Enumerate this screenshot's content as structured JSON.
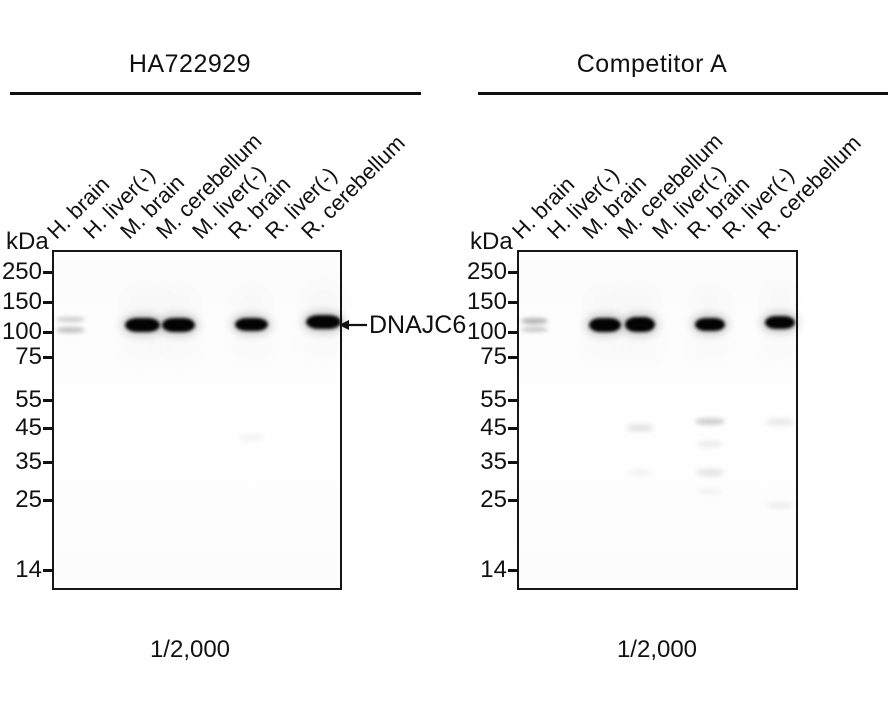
{
  "annotation": {
    "label": "DNAJC6",
    "points_to_kda": 110
  },
  "panels": [
    {
      "title": "HA722929",
      "dilution": "1/2,000",
      "kda_unit": "kDa",
      "lanes": [
        "H. brain",
        "H. liver(-)",
        "M. brain",
        "M. cerebellum",
        "M. liver(-)",
        "R. brain",
        "R. liver(-)",
        "R. cerebellum"
      ],
      "markers": [
        "250",
        "150",
        "100",
        "75",
        "55",
        "45",
        "35",
        "25",
        "14"
      ],
      "bands": [
        {
          "lane": 0,
          "kda": 118,
          "w": 29,
          "h": 5,
          "opacity": 0.2
        },
        {
          "lane": 0,
          "kda": 103,
          "w": 29,
          "h": 6,
          "opacity": 0.24
        },
        {
          "lane": 2,
          "kda": 110,
          "w": 35,
          "h": 14,
          "opacity": 1
        },
        {
          "lane": 3,
          "kda": 110,
          "w": 33,
          "h": 14,
          "opacity": 1
        },
        {
          "lane": 5,
          "kda": 110,
          "w": 33,
          "h": 13,
          "opacity": 1
        },
        {
          "lane": 7,
          "kda": 114,
          "w": 35,
          "h": 14,
          "opacity": 1
        },
        {
          "lane": 5,
          "kda": 42,
          "w": 26,
          "h": 5,
          "opacity": 0.06
        }
      ]
    },
    {
      "title": "Competitor A",
      "dilution": "1/2,000",
      "kda_unit": "kDa",
      "lanes": [
        "H. brain",
        "H. liver(-)",
        "M. brain",
        "M. cerebellum",
        "M. liver(-)",
        "R. brain",
        "R. liver(-)",
        "R. cerebellum"
      ],
      "markers": [
        "250",
        "150",
        "100",
        "75",
        "55",
        "45",
        "35",
        "25",
        "14"
      ],
      "bands": [
        {
          "lane": 0,
          "kda": 116,
          "w": 27,
          "h": 6,
          "opacity": 0.3
        },
        {
          "lane": 0,
          "kda": 103,
          "w": 27,
          "h": 5,
          "opacity": 0.22
        },
        {
          "lane": 2,
          "kda": 110,
          "w": 32,
          "h": 14,
          "opacity": 1
        },
        {
          "lane": 3,
          "kda": 110,
          "w": 30,
          "h": 15,
          "opacity": 1
        },
        {
          "lane": 5,
          "kda": 110,
          "w": 30,
          "h": 13,
          "opacity": 1
        },
        {
          "lane": 7,
          "kda": 113,
          "w": 30,
          "h": 13,
          "opacity": 1
        },
        {
          "lane": 3,
          "kda": 45,
          "w": 28,
          "h": 6,
          "opacity": 0.13
        },
        {
          "lane": 3,
          "kda": 32,
          "w": 24,
          "h": 5,
          "opacity": 0.05
        },
        {
          "lane": 5,
          "kda": 47,
          "w": 30,
          "h": 7,
          "opacity": 0.18
        },
        {
          "lane": 5,
          "kda": 40,
          "w": 26,
          "h": 6,
          "opacity": 0.08
        },
        {
          "lane": 5,
          "kda": 32,
          "w": 28,
          "h": 7,
          "opacity": 0.11
        },
        {
          "lane": 5,
          "kda": 27,
          "w": 26,
          "h": 5,
          "opacity": 0.06
        },
        {
          "lane": 7,
          "kda": 47,
          "w": 28,
          "h": 6,
          "opacity": 0.1
        },
        {
          "lane": 7,
          "kda": 24,
          "w": 26,
          "h": 6,
          "opacity": 0.07
        }
      ]
    }
  ]
}
